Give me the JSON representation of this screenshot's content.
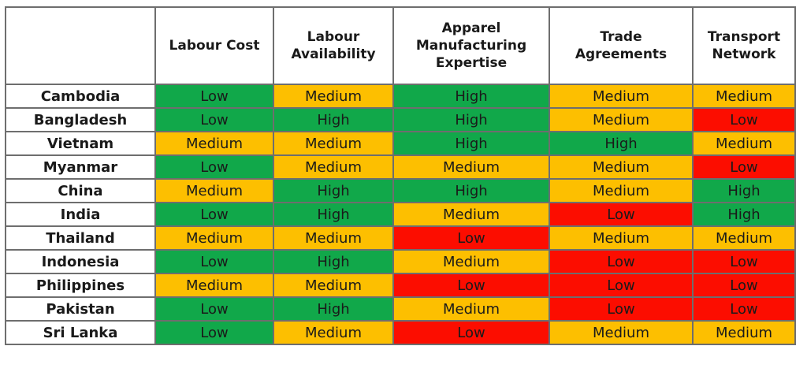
{
  "table": {
    "corner": "",
    "headers": [
      [
        "Labour Cost"
      ],
      [
        "Labour",
        "Availability"
      ],
      [
        "Apparel",
        "Manufacturing",
        "Expertise"
      ],
      [
        "Trade",
        "Agreements"
      ],
      [
        "Transport",
        "Network"
      ]
    ],
    "rows": [
      {
        "country": "Cambodia",
        "values": [
          "Low",
          "Medium",
          "High",
          "Medium",
          "Medium"
        ]
      },
      {
        "country": "Bangladesh",
        "values": [
          "Low",
          "High",
          "High",
          "Medium",
          "Low"
        ]
      },
      {
        "country": "Vietnam",
        "values": [
          "Medium",
          "Medium",
          "High",
          "High",
          "Medium"
        ]
      },
      {
        "country": "Myanmar",
        "values": [
          "Low",
          "Medium",
          "Medium",
          "Medium",
          "Low"
        ]
      },
      {
        "country": "China",
        "values": [
          "Medium",
          "High",
          "High",
          "Medium",
          "High"
        ]
      },
      {
        "country": "India",
        "values": [
          "Low",
          "High",
          "Medium",
          "Low",
          "High"
        ]
      },
      {
        "country": "Thailand",
        "values": [
          "Medium",
          "Medium",
          "Low",
          "Medium",
          "Medium"
        ]
      },
      {
        "country": "Indonesia",
        "values": [
          "Low",
          "High",
          "Medium",
          "Low",
          "Low"
        ]
      },
      {
        "country": "Philippines",
        "values": [
          "Medium",
          "Medium",
          "Low",
          "Low",
          "Low"
        ]
      },
      {
        "country": "Pakistan",
        "values": [
          "Low",
          "High",
          "Medium",
          "Low",
          "Low"
        ]
      },
      {
        "country": "Sri Lanka",
        "values": [
          "Low",
          "Medium",
          "Low",
          "Medium",
          "Medium"
        ]
      }
    ],
    "cell_colors": [
      [
        "green",
        "orange",
        "green",
        "orange",
        "orange"
      ],
      [
        "green",
        "green",
        "green",
        "orange",
        "red"
      ],
      [
        "orange",
        "orange",
        "green",
        "green",
        "orange"
      ],
      [
        "green",
        "orange",
        "orange",
        "orange",
        "red"
      ],
      [
        "orange",
        "green",
        "green",
        "orange",
        "green"
      ],
      [
        "green",
        "green",
        "orange",
        "red",
        "green"
      ],
      [
        "orange",
        "orange",
        "red",
        "orange",
        "orange"
      ],
      [
        "green",
        "green",
        "orange",
        "red",
        "red"
      ],
      [
        "orange",
        "orange",
        "red",
        "red",
        "red"
      ],
      [
        "green",
        "green",
        "orange",
        "red",
        "red"
      ],
      [
        "green",
        "orange",
        "red",
        "orange",
        "orange"
      ]
    ],
    "colors": {
      "green": "#11a84a",
      "orange": "#fdbf00",
      "red": "#fc0d00"
    }
  }
}
